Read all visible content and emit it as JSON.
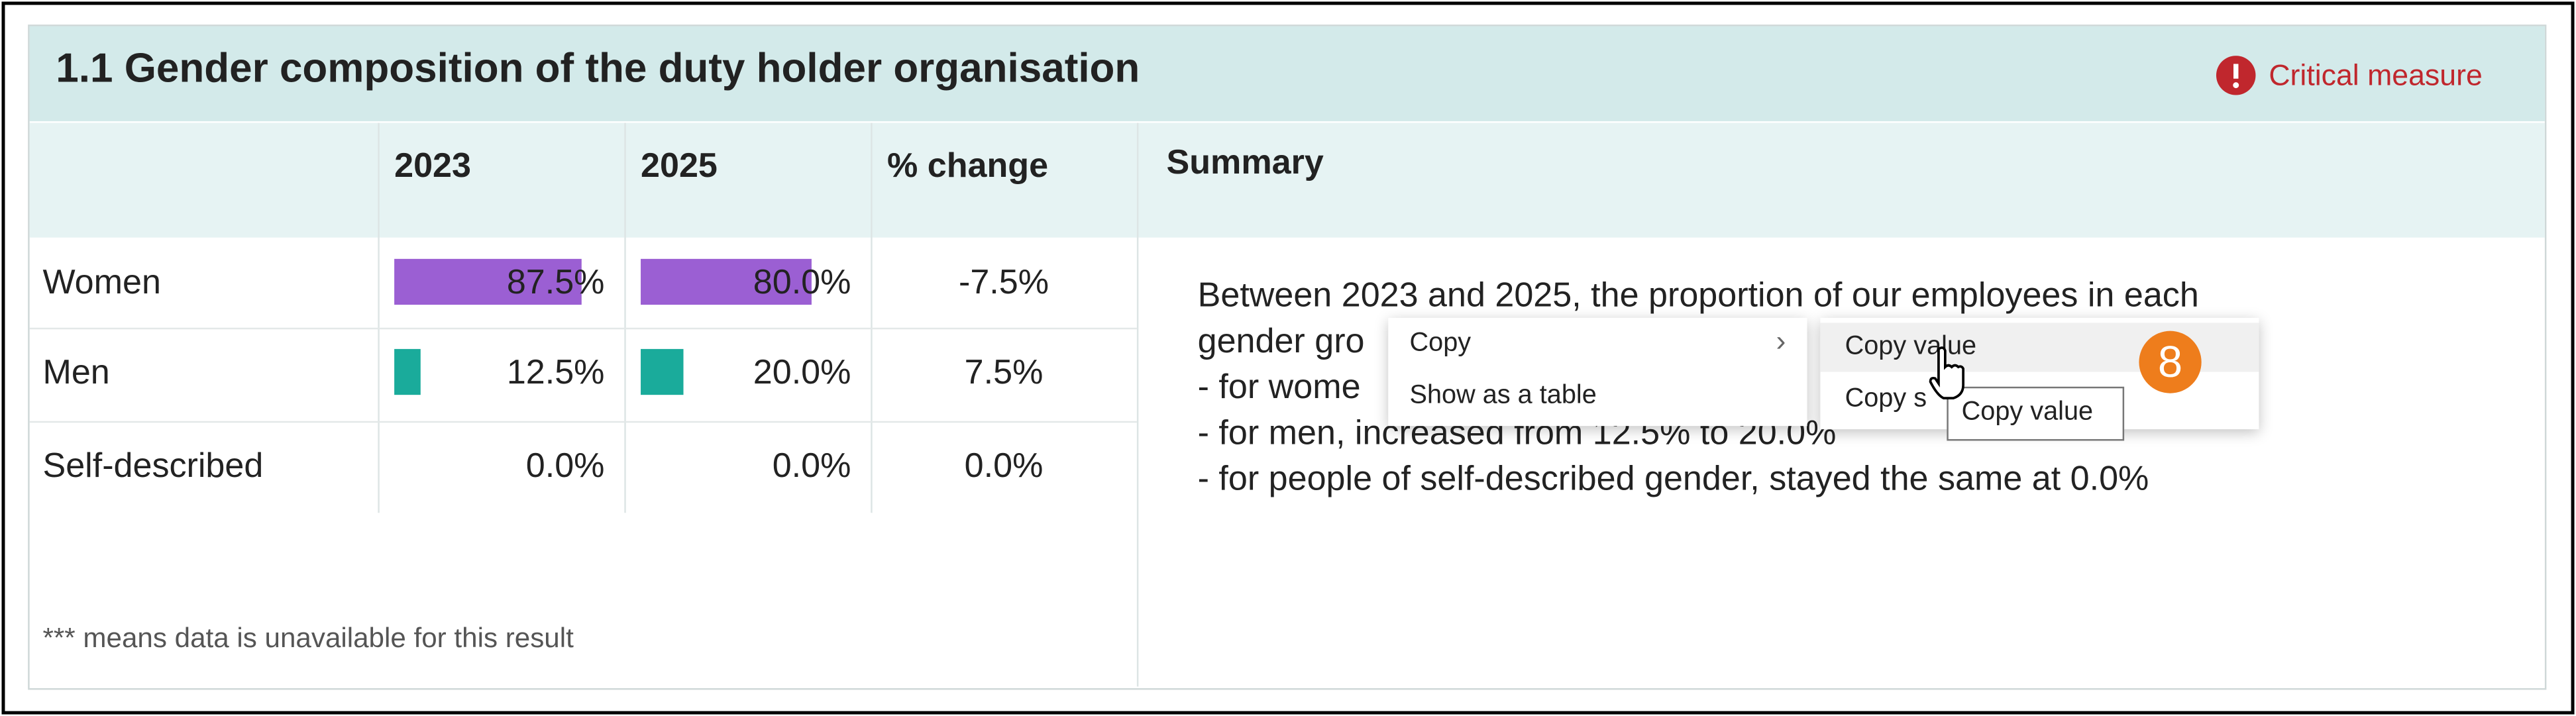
{
  "header": {
    "title": "1.1 Gender composition of the duty holder organisation",
    "badge": "Critical measure"
  },
  "table": {
    "columns": [
      "2023",
      "2025",
      "% change"
    ],
    "rows": [
      {
        "name": "Women",
        "cells": [
          {
            "value": 87.5,
            "label": "87.5%"
          },
          {
            "value": 80.0,
            "label": "80.0%"
          },
          "-7.5%"
        ]
      },
      {
        "name": "Men",
        "cells": [
          {
            "value": 12.5,
            "label": "12.5%"
          },
          {
            "value": 20.0,
            "label": "20.0%"
          },
          "7.5%"
        ]
      },
      {
        "name": "Self-described",
        "cells": [
          {
            "value": 0.0,
            "label": "0.0%"
          },
          {
            "value": 0.0,
            "label": "0.0%"
          },
          "0.0%"
        ]
      }
    ],
    "bar_colors": [
      "#9b5fd3",
      "#1aab9b",
      "#9b9b9b"
    ],
    "footnote": "*** means data is unavailable for this result"
  },
  "summary": {
    "heading": "Summary",
    "lines": [
      "Between 2023 and 2025, the proportion of our employees in each",
      "gender gro",
      "- for wome",
      "- for men, increased from 12.5% to 20.0%",
      "- for people of self-described gender, stayed the same at 0.0%"
    ]
  },
  "context_menu": {
    "items": [
      "Copy",
      "Show as a table"
    ],
    "submenu": [
      "Copy value",
      "Copy s"
    ],
    "tooltip": "Copy value",
    "step": "8"
  }
}
